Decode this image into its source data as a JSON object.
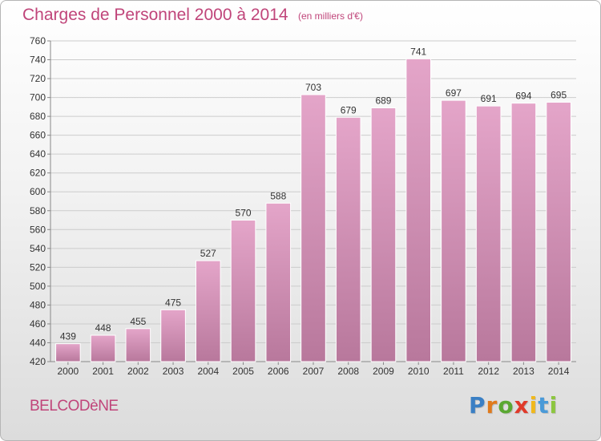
{
  "title": "Charges de Personnel 2000 à 2014",
  "subtitle": "(en milliers d'€)",
  "commune": "BELCODèNE",
  "logo": {
    "text": "Proxiti",
    "letter_colors": [
      "#3a7fc4",
      "#e07a1c",
      "#5aa832",
      "#e03a2a",
      "#f0b81c",
      "#4a9ad8",
      "#8cc63f"
    ]
  },
  "colors": {
    "bar_top": "#e4a5c9",
    "bar_bottom": "#b8789c",
    "text": "#c0457a",
    "grid": "#cccccc"
  },
  "chart_data": {
    "type": "bar",
    "categories": [
      "2000",
      "2001",
      "2002",
      "2003",
      "2004",
      "2005",
      "2006",
      "2007",
      "2008",
      "2009",
      "2010",
      "2011",
      "2012",
      "2013",
      "2014"
    ],
    "values": [
      439,
      448,
      455,
      475,
      527,
      570,
      588,
      703,
      679,
      689,
      741,
      697,
      691,
      694,
      695
    ],
    "title": "Charges de Personnel 2000 à 2014",
    "subtitle": "(en milliers d'€)",
    "xlabel": "",
    "ylabel": "",
    "ylim": [
      420,
      760
    ],
    "yticks": [
      420,
      440,
      460,
      480,
      500,
      520,
      540,
      560,
      580,
      600,
      620,
      640,
      660,
      680,
      700,
      720,
      740,
      760
    ],
    "grid": true,
    "legend": "none"
  }
}
